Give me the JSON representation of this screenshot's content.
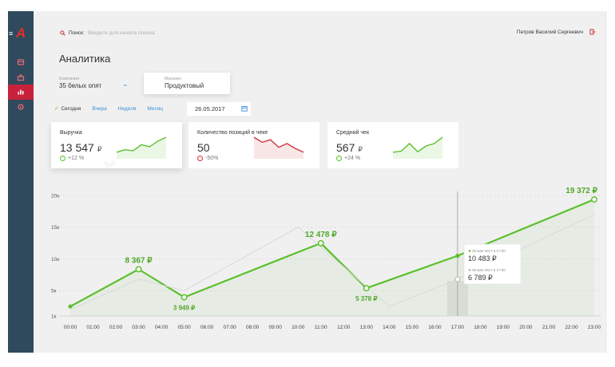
{
  "sidebar": {
    "logo": "A",
    "menu_icon": "menu-icon",
    "items": [
      {
        "icon": "orders-icon"
      },
      {
        "icon": "products-icon"
      },
      {
        "icon": "analytics-icon",
        "active": true
      },
      {
        "icon": "settings-icon"
      }
    ]
  },
  "topbar": {
    "search_label": "Поиск:",
    "search_placeholder": "Введите для начала поиска",
    "user_name": "Петров Василий Сергеевич"
  },
  "page": {
    "title": "Аналитика"
  },
  "filters": {
    "company_caption": "Компания",
    "company_value": "35 белых опят",
    "store_caption": "Магазин",
    "store_value": "Продуктовый",
    "periods": [
      "Сегодня",
      "Вчера",
      "Неделя",
      "Месяц"
    ],
    "active_period": "Сегодня",
    "date": "26.05.2017"
  },
  "cards": [
    {
      "title": "Выручка",
      "value": "13 547",
      "currency": "₽",
      "delta": "+12 %",
      "trend": "up",
      "spark": [
        2,
        3,
        2.6,
        5,
        4.2,
        6.5,
        8
      ]
    },
    {
      "title": "Количество позиций в чеке",
      "value": "50",
      "currency": "",
      "delta": "-50%",
      "trend": "down",
      "spark": [
        8,
        6,
        7,
        4,
        5.5,
        3.5,
        2
      ]
    },
    {
      "title": "Средний чек",
      "value": "567",
      "currency": "₽",
      "delta": "+24 %",
      "trend": "up",
      "spark": [
        2,
        2.4,
        5.5,
        2.2,
        4.5,
        5.5,
        8
      ]
    }
  ],
  "colors": {
    "accent_green": "#5cc02d",
    "accent_red": "#d0343a",
    "link_blue": "#3a8fd8",
    "sidebar": "#2f4a5c"
  },
  "chart_data": {
    "type": "line",
    "x": [
      "00:00",
      "01:00",
      "02:00",
      "03:00",
      "04:00",
      "05:00",
      "06:00",
      "07:00",
      "08:00",
      "09:00",
      "10:00",
      "11:00",
      "12:00",
      "13:00",
      "14:00",
      "15:00",
      "16:00",
      "17:00",
      "18:00",
      "19:00",
      "20:00",
      "21:00",
      "22:00",
      "23:00"
    ],
    "yticks": [
      "1к",
      "5к",
      "10к",
      "15к",
      "20к"
    ],
    "ylim": [
      1000,
      20000
    ],
    "series": [
      {
        "name": "26 мая 2017",
        "color": "#5cc02d",
        "points": [
          [
            0,
            2500
          ],
          [
            3,
            8367
          ],
          [
            5,
            3949
          ],
          [
            11,
            12478
          ],
          [
            13,
            5378
          ],
          [
            17,
            10483
          ],
          [
            23,
            19372
          ]
        ]
      },
      {
        "name": "25 мая 2017",
        "color": "#d9d9d9",
        "points": [
          [
            0,
            2000
          ],
          [
            3,
            6800
          ],
          [
            5,
            5000
          ],
          [
            10,
            15000
          ],
          [
            14,
            2500
          ],
          [
            17,
            6789
          ],
          [
            23,
            17000
          ]
        ]
      }
    ],
    "point_labels": [
      {
        "series": 0,
        "point": 1,
        "text": "8 367 ₽",
        "pos": "above"
      },
      {
        "series": 0,
        "point": 2,
        "text": "3 949 ₽",
        "pos": "below"
      },
      {
        "series": 0,
        "point": 3,
        "text": "12 478 ₽",
        "pos": "above"
      },
      {
        "series": 0,
        "point": 4,
        "text": "5 378 ₽",
        "pos": "below"
      },
      {
        "series": 0,
        "point": 6,
        "text": "19 372 ₽",
        "pos": "above"
      }
    ],
    "cursor_hour": 17,
    "tooltip": [
      {
        "date": "26 мая 2017 в 17:00",
        "value": "10 483 ₽"
      },
      {
        "date": "25 мая 2017 в 17:00",
        "value": "6 789 ₽"
      }
    ]
  }
}
